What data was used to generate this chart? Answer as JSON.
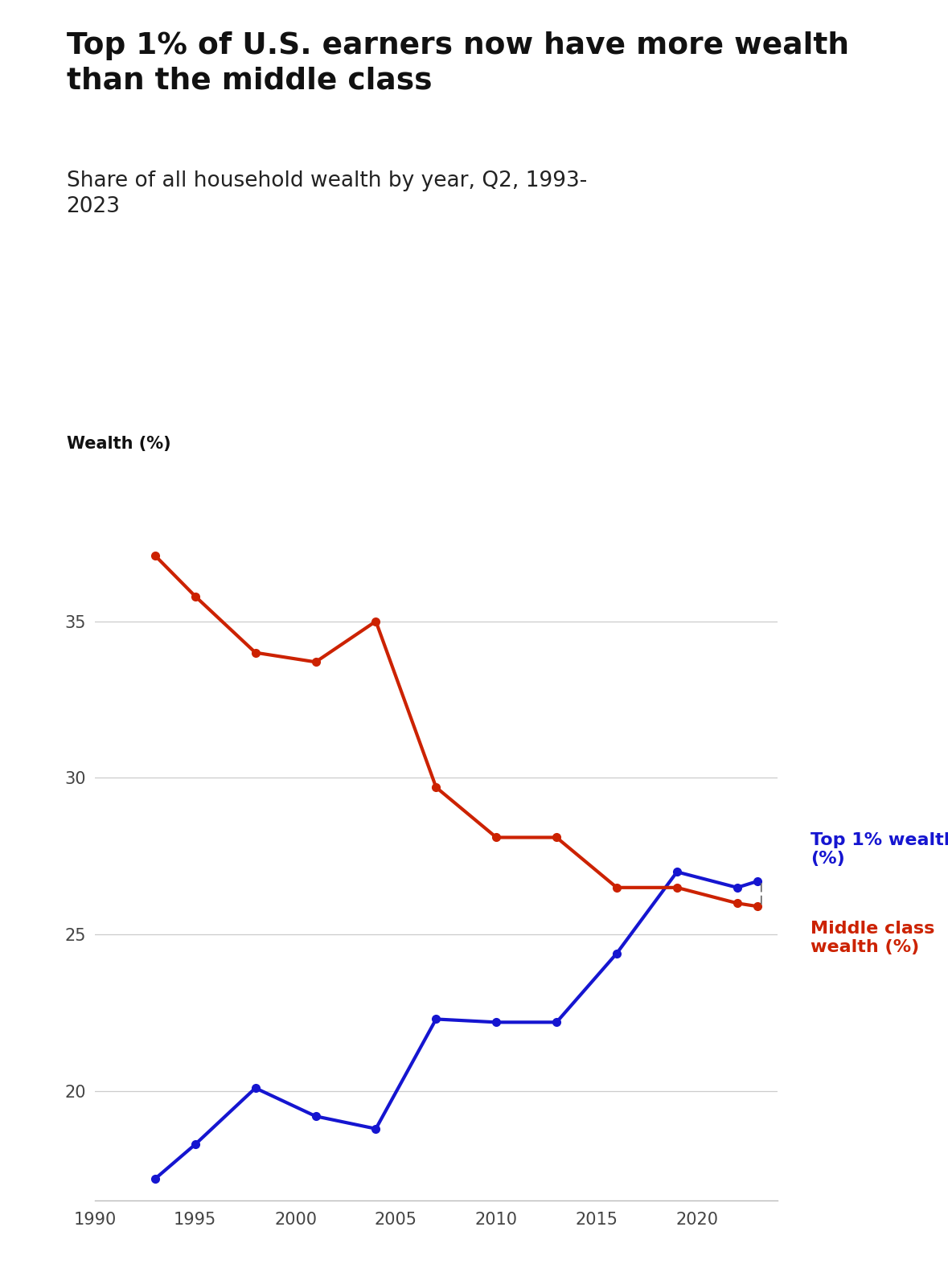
{
  "title": "Top 1% of U.S. earners now have more wealth\nthan the middle class",
  "subtitle": "Share of all household wealth by year, Q2, 1993-\n2023",
  "ylabel": "Wealth (%)",
  "background_color": "#ffffff",
  "top1_years": [
    1993,
    1995,
    1998,
    2001,
    2004,
    2007,
    2010,
    2013,
    2016,
    2019,
    2022,
    2023
  ],
  "top1_values": [
    17.2,
    18.3,
    20.1,
    19.2,
    18.8,
    22.3,
    22.2,
    22.2,
    24.4,
    27.0,
    26.5,
    26.7
  ],
  "middle_years": [
    1993,
    1995,
    1998,
    2001,
    2004,
    2007,
    2010,
    2013,
    2016,
    2019,
    2022,
    2023
  ],
  "middle_values": [
    37.1,
    35.8,
    34.0,
    33.7,
    35.0,
    29.7,
    28.1,
    28.1,
    26.5,
    26.5,
    26.0,
    25.9
  ],
  "top1_color": "#1515d0",
  "middle_color": "#cc2200",
  "line_width": 3.0,
  "marker_size": 7,
  "xlim": [
    1990,
    2024
  ],
  "ylim": [
    16.5,
    39.5
  ],
  "yticks": [
    20,
    25,
    30,
    35
  ],
  "xticks": [
    1990,
    1995,
    2000,
    2005,
    2010,
    2015,
    2020
  ],
  "grid_color": "#cccccc",
  "title_fontsize": 27,
  "subtitle_fontsize": 19,
  "ylabel_fontsize": 15,
  "tick_fontsize": 15,
  "legend_fontsize": 16
}
